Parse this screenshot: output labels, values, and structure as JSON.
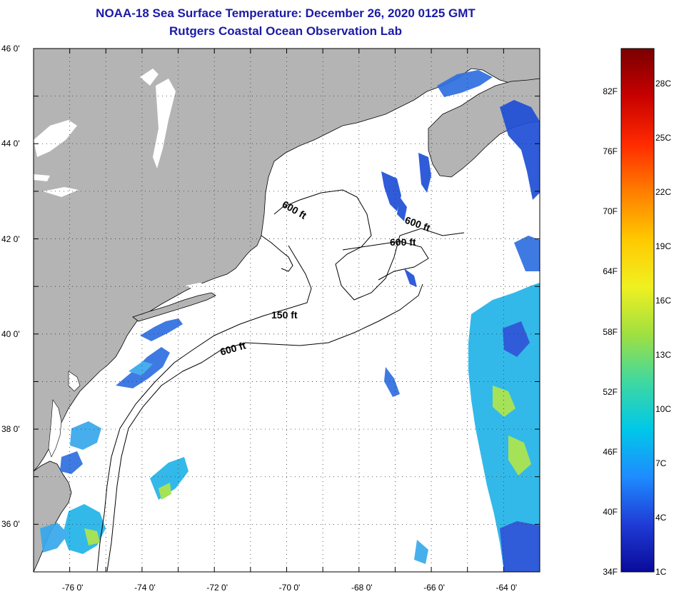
{
  "title": {
    "line1": "NOAA-18 Sea Surface Temperature:  December 26, 2020 0125 GMT",
    "line2": "Rutgers Coastal Ocean Observation Lab"
  },
  "map": {
    "lon_range": [
      -77,
      -63
    ],
    "lat_range": [
      35,
      46
    ],
    "lat_labels": [
      {
        "lat": 46,
        "text": "46 0'"
      },
      {
        "lat": 44,
        "text": "44 0'"
      },
      {
        "lat": 42,
        "text": "42 0'"
      },
      {
        "lat": 40,
        "text": "40 0'"
      },
      {
        "lat": 38,
        "text": "38 0'"
      },
      {
        "lat": 36,
        "text": "36 0'"
      }
    ],
    "lon_labels": [
      {
        "lon": -76,
        "text": "-76 0'"
      },
      {
        "lon": -74,
        "text": "-74 0'"
      },
      {
        "lon": -72,
        "text": "-72 0'"
      },
      {
        "lon": -70,
        "text": "-70 0'"
      },
      {
        "lon": -68,
        "text": "-68 0'"
      },
      {
        "lon": -66,
        "text": "-66 0'"
      },
      {
        "lon": -64,
        "text": "-64 0'"
      }
    ],
    "contour_labels": [
      "600 ft",
      "600 ft",
      "600 ft",
      "150 ft",
      "600 ft"
    ],
    "colors": {
      "land": "#b4b4b4",
      "ocean": "#ffffff",
      "sst_cold": "#1f4fd6",
      "sst_mid": "#22b4e8",
      "sst_warm": "#9ee04a"
    }
  },
  "colorbar": {
    "colors": [
      "#7a0000",
      "#c80000",
      "#ff2a00",
      "#ff7d00",
      "#ffc800",
      "#f0f020",
      "#a0e040",
      "#40d8a0",
      "#00c8e8",
      "#1e8cff",
      "#1f3cd6",
      "#0a0a9a"
    ],
    "fahrenheit": [
      "82F",
      "76F",
      "70F",
      "64F",
      "58F",
      "52F",
      "46F",
      "40F",
      "34F"
    ],
    "celsius": [
      "28C",
      "25C",
      "22C",
      "19C",
      "16C",
      "13C",
      "10C",
      "7C",
      "4C",
      "1C"
    ]
  }
}
